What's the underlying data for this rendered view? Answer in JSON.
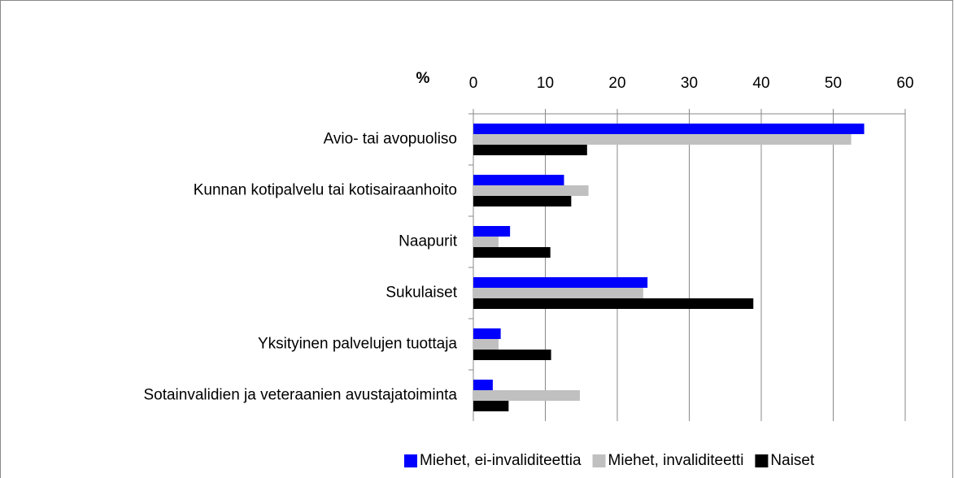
{
  "chart_data": {
    "type": "hbar",
    "x_label": "%",
    "categories": [
      "Avio- tai avopuoliso",
      "Kunnan kotipalvelu tai kotisairaanhoito",
      "Naapurit",
      "Sukulaiset",
      "Yksityinen palvelujen tuottaja",
      "Sotainvalidien ja veteraanien avustajatoiminta"
    ],
    "series": [
      {
        "name": "Miehet, ei-invaliditeettia",
        "color": "#0000ff",
        "values": [
          54.3,
          12.6,
          5.1,
          24.2,
          3.8,
          2.7
        ]
      },
      {
        "name": "Miehet, invaliditeetti",
        "color": "#c0c0c0",
        "values": [
          52.5,
          16.0,
          3.5,
          23.6,
          3.5,
          14.8
        ]
      },
      {
        "name": "Naiset",
        "color": "#000000",
        "values": [
          15.8,
          13.6,
          10.7,
          38.9,
          10.8,
          4.9
        ]
      }
    ],
    "xlim": [
      0,
      60
    ],
    "xticks": [
      0,
      10,
      20,
      30,
      40,
      50,
      60
    ],
    "grid": true,
    "legend": "bottom"
  }
}
